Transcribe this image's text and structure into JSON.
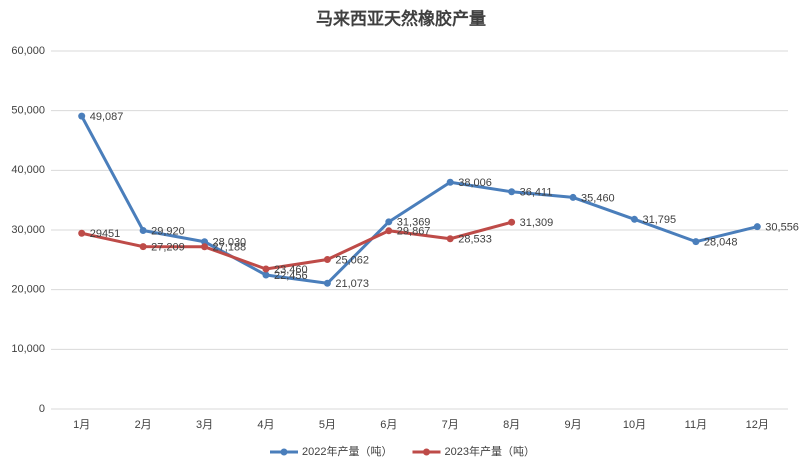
{
  "chart_data": {
    "type": "line",
    "title": "马来西亚天然橡胶产量",
    "categories": [
      "1月",
      "2月",
      "3月",
      "4月",
      "5月",
      "6月",
      "7月",
      "8月",
      "9月",
      "10月",
      "11月",
      "12月"
    ],
    "series": [
      {
        "name": "2022年产量（吨）",
        "color": "#4a7ebb",
        "values": [
          49087,
          29920,
          28030,
          22456,
          21073,
          31369,
          38006,
          36411,
          35460,
          31795,
          28048,
          30556
        ],
        "value_labels": [
          "49,087",
          "29,920",
          "28,030",
          "22,456",
          "21,073",
          "31,369",
          "38,006",
          "36,411",
          "35,460",
          "31,795",
          "28,048",
          "30,556"
        ]
      },
      {
        "name": "2023年产量（吨）",
        "color": "#be4b48",
        "values": [
          29451,
          27209,
          27188,
          23460,
          25062,
          29867,
          28533,
          31309,
          null,
          null,
          null,
          null
        ],
        "value_labels": [
          "29451",
          "27,209",
          "27,188",
          "23,460",
          "25,062",
          "29,867",
          "28,533",
          "31,309",
          null,
          null,
          null,
          null
        ]
      }
    ],
    "ylim": [
      0,
      60000
    ],
    "yticks": [
      0,
      {
        "value": 10000,
        "label": "10,000"
      },
      {
        "value": 20000,
        "label": "20,000"
      },
      {
        "value": 30000,
        "label": "30,000"
      },
      {
        "value": 40000,
        "label": "40,000"
      },
      {
        "value": 50000,
        "label": "50,000"
      },
      {
        "value": 60000,
        "label": "60,000"
      }
    ],
    "grid": true,
    "legend": "bottom"
  }
}
